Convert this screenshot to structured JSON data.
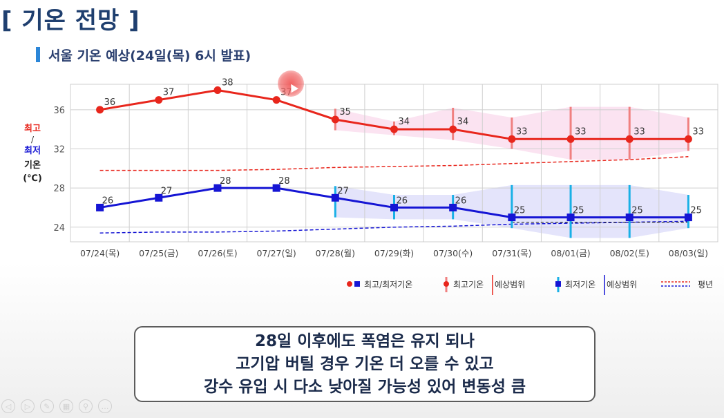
{
  "page": {
    "title": "[ 기온 전망 ]",
    "subtitle": "서울 기온 예상(24일(목) 6시 발표)"
  },
  "y_axis_label": {
    "line1": "최고",
    "line2": "/",
    "line3": "최저",
    "line4": "기온",
    "line5": "(℃)"
  },
  "legend": {
    "item1": "최고/최저기온",
    "item2a": "최고기온",
    "item2b": "예상범위",
    "item3a": "최저기온",
    "item3b": "예상범위",
    "item4": "평년"
  },
  "note": {
    "line1": "28일 이후에도 폭염은 유지 되나",
    "line2": "고기압 버틸 경우 기온 더 오를 수 있고",
    "line3": "강수 유입 시 다소 낮아질 가능성 있어 변동성 큼"
  },
  "colors": {
    "high": "#e8261c",
    "low": "#1515d4",
    "high_range": "#f08080",
    "low_range": "#19b0e6",
    "high_band": "#fbe3f1",
    "low_band": "#e4e4fb",
    "grid": "#cfcfcf"
  },
  "toolbar_icons": [
    "prev-icon",
    "next-icon",
    "pen-icon",
    "slides-icon",
    "zoom-icon",
    "more-icon"
  ],
  "chart_data": {
    "type": "line",
    "categories": [
      "07/24(목)",
      "07/25(금)",
      "07/26(토)",
      "07/27(일)",
      "07/28(월)",
      "07/29(화)",
      "07/30(수)",
      "07/31(목)",
      "08/01(금)",
      "08/02(토)",
      "08/03(일)"
    ],
    "ylim": [
      22.5,
      38.6
    ],
    "yticks": [
      24,
      28,
      32,
      36
    ],
    "grid": true,
    "legend_position": "bottom-right",
    "series": [
      {
        "values": [
          36,
          37,
          38,
          37,
          35,
          34,
          34,
          33,
          33,
          33,
          33
        ]
      },
      {
        "values": [
          26,
          27,
          28,
          28,
          27,
          26,
          26,
          25,
          25,
          25,
          25
        ]
      }
    ],
    "high_range": [
      null,
      null,
      null,
      null,
      [
        33.9,
        36.1
      ],
      [
        33.4,
        34.8
      ],
      [
        32.9,
        36.2
      ],
      [
        32.0,
        35.2
      ],
      [
        30.9,
        36.3
      ],
      [
        30.9,
        36.3
      ],
      [
        31.8,
        35.2
      ]
    ],
    "low_range": [
      null,
      null,
      null,
      null,
      [
        25.0,
        28.2
      ],
      [
        24.8,
        27.3
      ],
      [
        24.8,
        27.3
      ],
      [
        23.9,
        28.3
      ],
      [
        22.9,
        28.3
      ],
      [
        22.9,
        28.3
      ],
      [
        23.9,
        27.3
      ]
    ],
    "normal_high": [
      29.8,
      29.8,
      29.8,
      29.9,
      30.1,
      30.2,
      30.3,
      30.5,
      30.7,
      30.9,
      31.2
    ],
    "normal_low": [
      23.4,
      23.5,
      23.5,
      23.6,
      23.8,
      24.0,
      24.1,
      24.3,
      24.4,
      24.5,
      24.6
    ]
  }
}
